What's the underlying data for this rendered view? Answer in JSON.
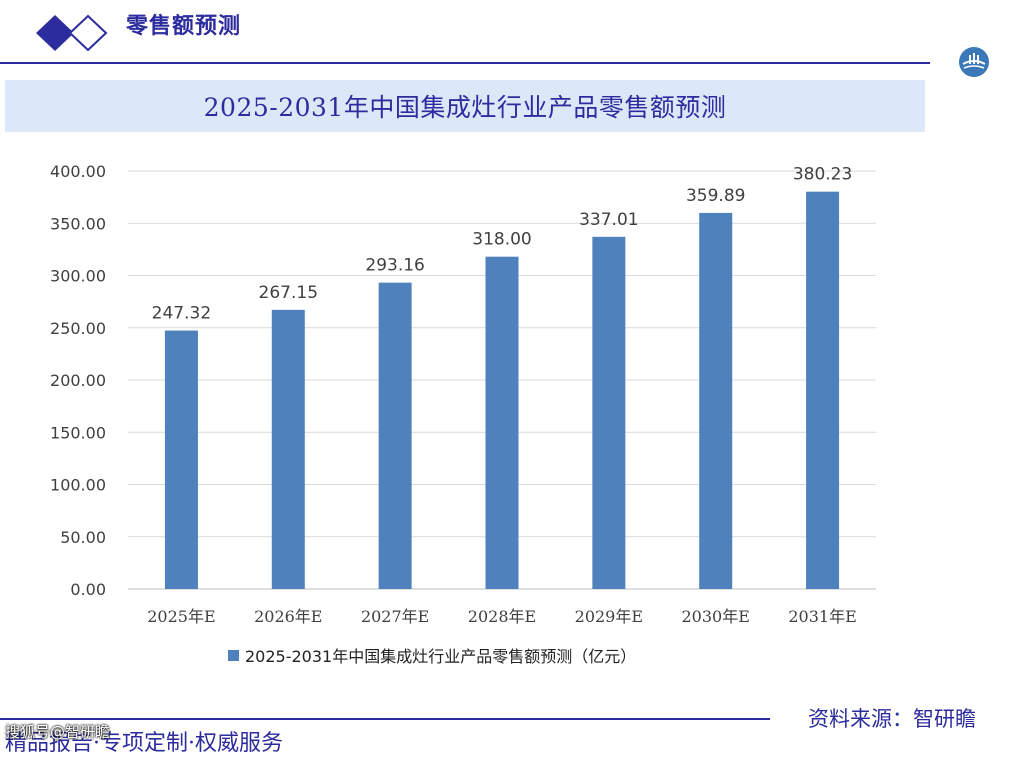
{
  "header": {
    "title": "零售额预测",
    "logo_color": "#2c2c9e"
  },
  "chart_data": {
    "type": "bar",
    "title": "2025-2031年中国集成灶行业产品零售额预测",
    "categories": [
      "2025年E",
      "2026年E",
      "2027年E",
      "2028年E",
      "2029年E",
      "2030年E",
      "2031年E"
    ],
    "series": [
      {
        "name": "2025-2031年中国集成灶行业产品零售额预测（亿元）",
        "values": [
          247.32,
          267.15,
          293.16,
          318.0,
          337.01,
          359.89,
          380.23
        ],
        "labels": [
          "247.32",
          "267.15",
          "293.16",
          "318.00",
          "337.01",
          "359.89",
          "380.23"
        ]
      }
    ],
    "yticks": [
      "0.00",
      "50.00",
      "100.00",
      "150.00",
      "200.00",
      "250.00",
      "300.00",
      "350.00",
      "400.00"
    ],
    "ylim": [
      0,
      400
    ],
    "grid": true,
    "legend_position": "bottom",
    "bar_color": "#4f81bd"
  },
  "footer": {
    "source": "资料来源：智研瞻",
    "slogan": "精品报告·专项定制·权威服务",
    "watermark": "搜狐号@智研瞻"
  }
}
